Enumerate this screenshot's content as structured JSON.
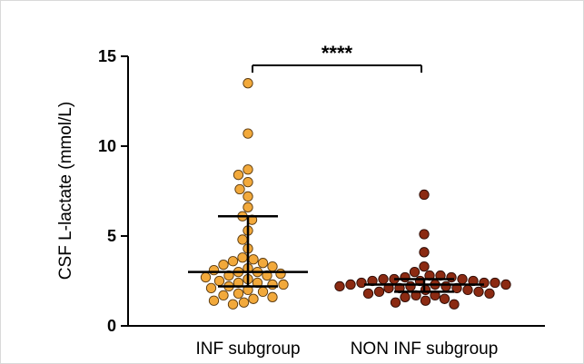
{
  "chart_data": {
    "type": "scatter",
    "title": "",
    "xlabel": "",
    "ylabel": "CSF L-lactate (mmol/L)",
    "ylim": [
      0,
      15
    ],
    "yticks": [
      "0",
      "5",
      "10",
      "15"
    ],
    "categories": [
      "INF subgroup",
      "NON INF subgroup"
    ],
    "significance": "****",
    "colors": {
      "INF subgroup": "#F2A93B",
      "NON INF subgroup": "#8B2A12"
    },
    "series": [
      {
        "name": "INF subgroup",
        "median": 3.0,
        "q1": 2.2,
        "q3": 6.1,
        "values": [
          13.5,
          10.7,
          8.7,
          8.4,
          8.0,
          7.6,
          7.2,
          6.6,
          6.1,
          5.9,
          5.3,
          4.8,
          4.3,
          3.8,
          3.7,
          3.6,
          3.5,
          3.4,
          3.3,
          3.2,
          3.1,
          3.0,
          3.0,
          2.9,
          2.8,
          2.8,
          2.7,
          2.6,
          2.5,
          2.4,
          2.4,
          2.3,
          2.3,
          2.2,
          2.1,
          2.0,
          1.9,
          1.8,
          1.7,
          1.6,
          1.5,
          1.4,
          1.3,
          1.2
        ]
      },
      {
        "name": "NON INF subgroup",
        "median": 2.3,
        "q1": 1.9,
        "q3": 2.6,
        "values": [
          7.3,
          5.1,
          4.1,
          3.3,
          3.0,
          2.8,
          2.8,
          2.7,
          2.7,
          2.6,
          2.6,
          2.6,
          2.5,
          2.5,
          2.5,
          2.4,
          2.4,
          2.4,
          2.3,
          2.3,
          2.3,
          2.2,
          2.2,
          2.2,
          2.1,
          2.1,
          2.1,
          2.0,
          2.0,
          1.9,
          1.9,
          1.8,
          1.8,
          1.7,
          1.7,
          1.6,
          1.5,
          1.4,
          1.3,
          1.2
        ]
      }
    ]
  }
}
